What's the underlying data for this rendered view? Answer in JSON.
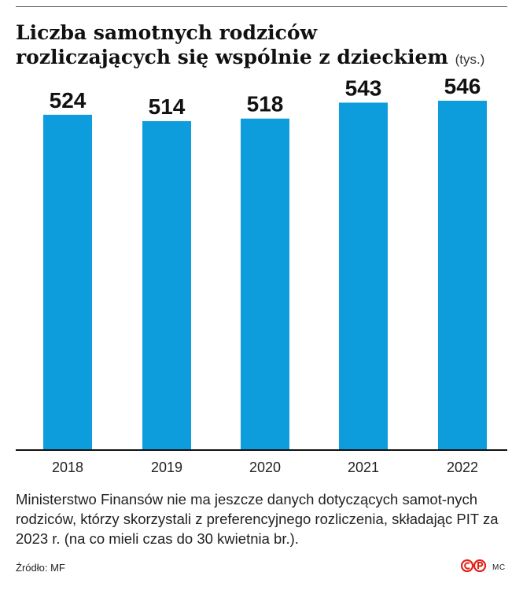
{
  "title": {
    "line1": "Liczba samotnych rodziców",
    "line2": "rozliczających się wspólnie z dzieckiem",
    "unit": "(tys.)"
  },
  "chart_data": {
    "type": "bar",
    "categories": [
      "2018",
      "2019",
      "2020",
      "2021",
      "2022"
    ],
    "values": [
      524,
      514,
      518,
      543,
      546
    ],
    "title": "Liczba samotnych rodziców rozliczających się wspólnie z dzieckiem",
    "unit": "tys.",
    "xlabel": "",
    "ylabel": "",
    "ylim": [
      0,
      546
    ],
    "grid": false,
    "bar_color": "#0e9ddc"
  },
  "note": "Ministerstwo Finansów nie ma jeszcze danych dotyczących samot-nych rodziców, którzy skorzystali z preferencyjnego rozliczenia, składając PIT za 2023 r. (na co mieli czas do 30 kwietnia br.).",
  "source": "Źródło: MF",
  "logo": {
    "icon": "cp-logo-icon",
    "color": "#e2231a"
  },
  "credit": "MC"
}
